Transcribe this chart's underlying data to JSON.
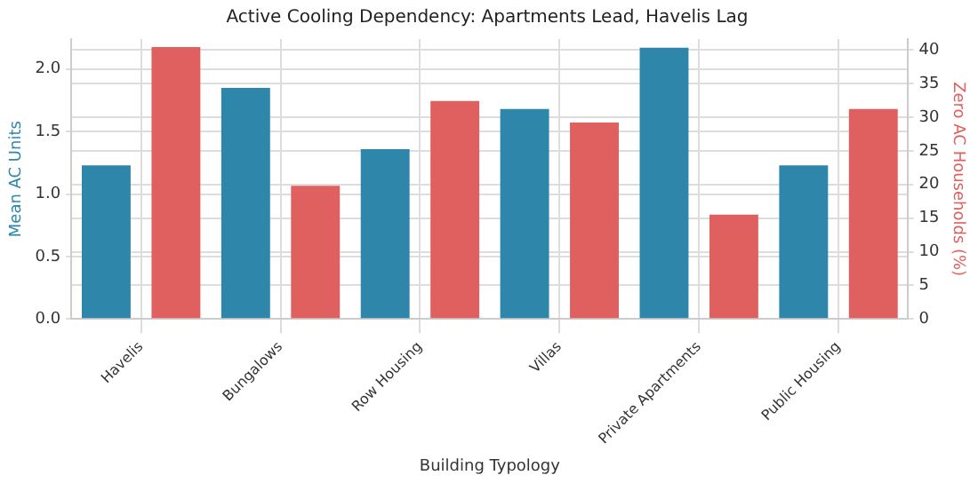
{
  "chart_data": {
    "type": "bar",
    "title": "Active Cooling Dependency: Apartments Lead, Havelis Lag",
    "xlabel": "Building Typology",
    "ylabel": "Mean AC Units",
    "y2label": "Zero AC Households (%)",
    "categories": [
      "Havelis",
      "Bungalows",
      "Row Housing",
      "Villas",
      "Private Apartments",
      "Public Housing"
    ],
    "series": [
      {
        "color": "#2e86ab",
        "values": [
          1.23,
          1.85,
          1.36,
          1.68,
          2.17,
          1.23
        ]
      },
      {
        "color": "#e05f5f",
        "values": [
          40.4,
          19.8,
          32.4,
          29.2,
          15.5,
          31.2
        ],
        "axis": "y2"
      }
    ],
    "ylim": [
      0,
      2.24
    ],
    "yticks": [
      {
        "value": 0,
        "label": "0.0"
      },
      {
        "value": 0.5,
        "label": "0.5"
      },
      {
        "value": 1,
        "label": "1.0"
      },
      {
        "value": 1.5,
        "label": "1.5"
      },
      {
        "value": 2,
        "label": "2.0"
      }
    ],
    "y2lim": [
      0,
      41.6
    ],
    "y2ticks": [
      0,
      5,
      10,
      15,
      20,
      25,
      30,
      35,
      40
    ],
    "grid": true,
    "legend": false
  }
}
